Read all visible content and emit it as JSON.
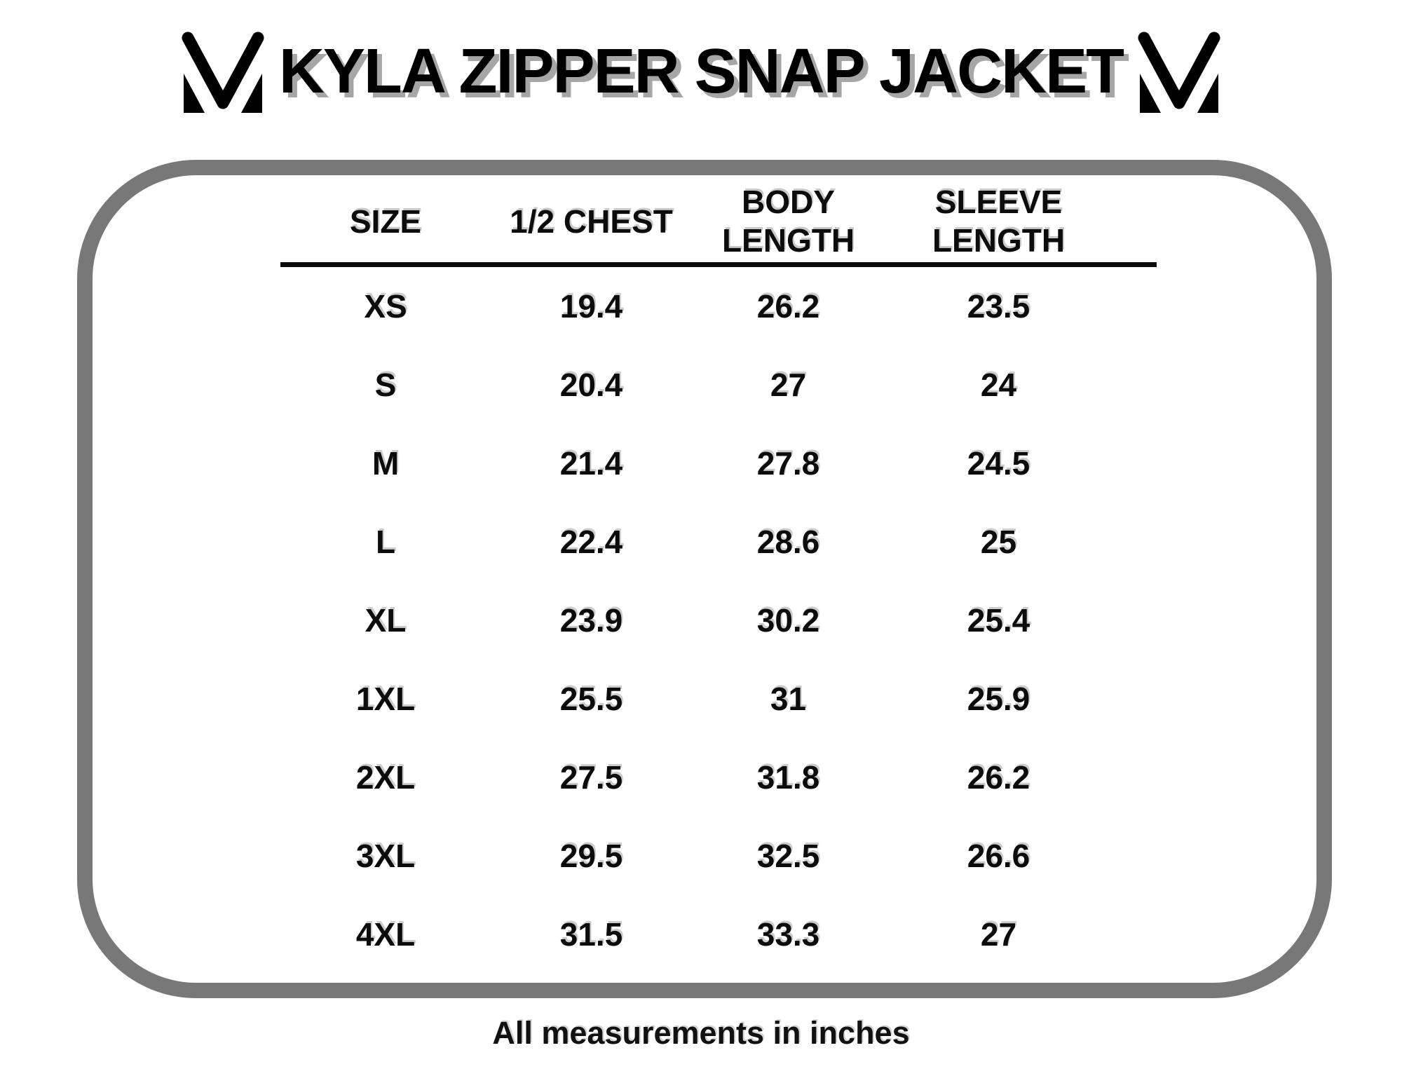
{
  "header": {
    "title": "KYLA ZIPPER SNAP JACKET"
  },
  "chart_data": {
    "type": "table",
    "title": "KYLA ZIPPER SNAP JACKET",
    "columns": [
      "SIZE",
      "1/2 CHEST",
      "BODY LENGTH",
      "SLEEVE LENGTH"
    ],
    "rows": [
      [
        "XS",
        "19.4",
        "26.2",
        "23.5"
      ],
      [
        "S",
        "20.4",
        "27",
        "24"
      ],
      [
        "M",
        "21.4",
        "27.8",
        "24.5"
      ],
      [
        "L",
        "22.4",
        "28.6",
        "25"
      ],
      [
        "XL",
        "23.9",
        "30.2",
        "25.4"
      ],
      [
        "1XL",
        "25.5",
        "31",
        "25.9"
      ],
      [
        "2XL",
        "27.5",
        "31.8",
        "26.2"
      ],
      [
        "3XL",
        "29.5",
        "32.5",
        "26.6"
      ],
      [
        "4XL",
        "31.5",
        "33.3",
        "27"
      ]
    ],
    "note": "All measurements in inches"
  },
  "colors": {
    "panel_border_gray": "#787878",
    "title_shadow_gray": "#a6a6a6",
    "text_black": "#0a0a0a"
  }
}
